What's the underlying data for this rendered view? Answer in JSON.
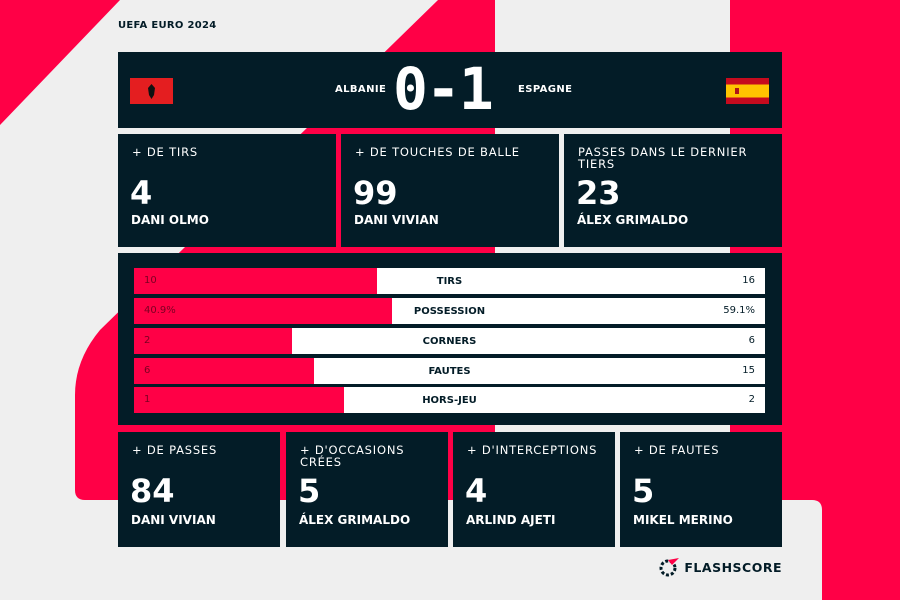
{
  "competition": "UEFA EURO 2024",
  "match": {
    "home": "ALBANIE",
    "away": "ESPAGNE",
    "score": "0-1",
    "home_flag": "albania-flag",
    "away_flag": "spain-flag"
  },
  "top_cards": [
    {
      "label": "+ DE TIRS",
      "value": "4",
      "player": "DANI OLMO"
    },
    {
      "label": "+ DE TOUCHES DE BALLE",
      "value": "99",
      "player": "DANI VIVIAN"
    },
    {
      "label": "PASSES DANS LE DERNIER TIERS",
      "value": "23",
      "player": "ÁLEX GRIMALDO"
    }
  ],
  "stats": [
    {
      "label": "TIRS",
      "home": "10",
      "away": "16",
      "home_fraction": 0.385
    },
    {
      "label": "POSSESSION",
      "home": "40.9%",
      "away": "59.1%",
      "home_fraction": 0.409
    },
    {
      "label": "CORNERS",
      "home": "2",
      "away": "6",
      "home_fraction": 0.25
    },
    {
      "label": "FAUTES",
      "home": "6",
      "away": "15",
      "home_fraction": 0.286
    },
    {
      "label": "HORS-JEU",
      "home": "1",
      "away": "2",
      "home_fraction": 0.333
    }
  ],
  "bottom_cards": [
    {
      "label": "+ DE PASSES",
      "value": "84",
      "player": "DANI VIVIAN"
    },
    {
      "label": "+ D'OCCASIONS CRÉES",
      "value": "5",
      "player": "ÁLEX GRIMALDO"
    },
    {
      "label": "+ D'INTERCEPTIONS",
      "value": "4",
      "player": "ARLIND AJETI"
    },
    {
      "label": "+ DE FAUTES",
      "value": "5",
      "player": "MIKEL MERINO"
    }
  ],
  "brand": "FLASHSCORE",
  "colors": {
    "accent": "#ff0046",
    "panel": "#031c27",
    "background": "#efefef"
  }
}
